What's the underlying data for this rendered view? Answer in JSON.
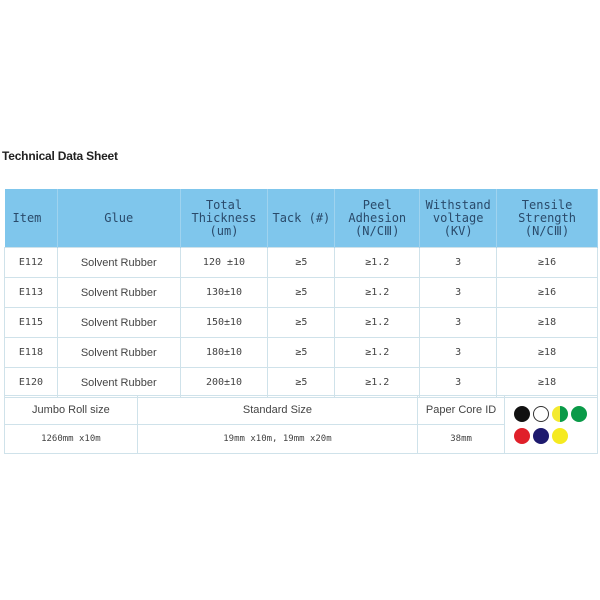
{
  "title": "Technical Data Sheet",
  "spec": {
    "headers": [
      "Item",
      "Glue",
      "Total Thickness (um)",
      "Tack (#)",
      "Peel Adhesion (N/CⅢ)",
      "Withstand voltage (KV)",
      "Tensile Strength (N/CⅢ)"
    ],
    "rows": [
      [
        "E112",
        "Solvent Rubber",
        "120 ±10",
        "≥5",
        "≥1.2",
        "3",
        "≥16"
      ],
      [
        "E113",
        "Solvent Rubber",
        "130±10",
        "≥5",
        "≥1.2",
        "3",
        "≥16"
      ],
      [
        "E115",
        "Solvent Rubber",
        "150±10",
        "≥5",
        "≥1.2",
        "3",
        "≥18"
      ],
      [
        "E118",
        "Solvent Rubber",
        "180±10",
        "≥5",
        "≥1.2",
        "3",
        "≥18"
      ],
      [
        "E120",
        "Solvent Rubber",
        "200±10",
        "≥5",
        "≥1.2",
        "3",
        "≥18"
      ]
    ]
  },
  "sizes": {
    "headers": [
      "Jumbo Roll size",
      "Standard Size",
      "Paper Core ID"
    ],
    "values": [
      "1260mm x10m",
      "19mm x10m, 19mm x20m",
      "38mm"
    ],
    "core_colors_row1": [
      "#111111",
      "#ffffff",
      "half-yellow-green",
      "#0a9a48"
    ],
    "core_colors_row2": [
      "#e0202a",
      "#1d1a6e",
      "#f5ea20"
    ]
  }
}
